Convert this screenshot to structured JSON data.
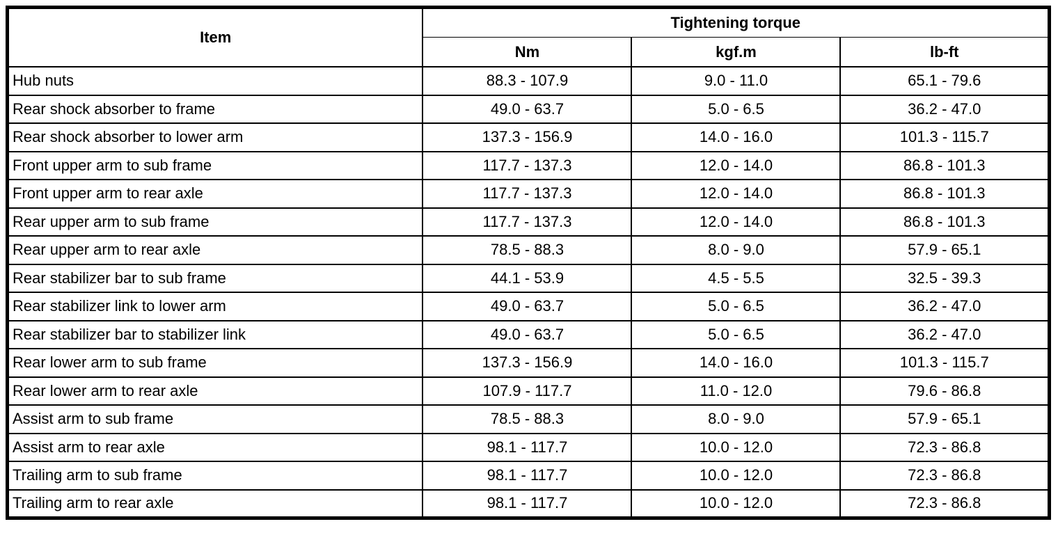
{
  "colors": {
    "border": "#000000",
    "background": "#ffffff",
    "text": "#000000"
  },
  "table": {
    "header": {
      "item_label": "Item",
      "group_label": "Tightening torque",
      "units": [
        "Nm",
        "kgf.m",
        "lb-ft"
      ]
    },
    "rows": [
      {
        "item": "Hub nuts",
        "nm": "88.3 - 107.9",
        "kgfm": "9.0 - 11.0",
        "lbft": "65.1 - 79.6"
      },
      {
        "item": "Rear shock absorber to frame",
        "nm": "49.0 - 63.7",
        "kgfm": "5.0 - 6.5",
        "lbft": "36.2 - 47.0"
      },
      {
        "item": "Rear shock absorber to lower arm",
        "nm": "137.3 - 156.9",
        "kgfm": "14.0 - 16.0",
        "lbft": "101.3 - 115.7"
      },
      {
        "item": "Front upper arm to sub frame",
        "nm": "117.7 - 137.3",
        "kgfm": "12.0 - 14.0",
        "lbft": "86.8 - 101.3"
      },
      {
        "item": "Front upper arm to rear axle",
        "nm": "117.7 - 137.3",
        "kgfm": "12.0 - 14.0",
        "lbft": "86.8 - 101.3"
      },
      {
        "item": "Rear upper arm to sub frame",
        "nm": "117.7 - 137.3",
        "kgfm": "12.0 - 14.0",
        "lbft": "86.8 - 101.3"
      },
      {
        "item": "Rear upper arm to rear axle",
        "nm": "78.5 - 88.3",
        "kgfm": "8.0 - 9.0",
        "lbft": "57.9 - 65.1"
      },
      {
        "item": "Rear stabilizer bar to sub frame",
        "nm": "44.1 - 53.9",
        "kgfm": "4.5 - 5.5",
        "lbft": "32.5 - 39.3"
      },
      {
        "item": "Rear stabilizer link to lower arm",
        "nm": "49.0 - 63.7",
        "kgfm": "5.0 - 6.5",
        "lbft": "36.2 - 47.0"
      },
      {
        "item": "Rear stabilizer bar to stabilizer link",
        "nm": "49.0 - 63.7",
        "kgfm": "5.0 - 6.5",
        "lbft": "36.2 - 47.0"
      },
      {
        "item": "Rear lower arm to sub frame",
        "nm": "137.3 - 156.9",
        "kgfm": "14.0 - 16.0",
        "lbft": "101.3 - 115.7"
      },
      {
        "item": "Rear lower arm to rear axle",
        "nm": "107.9 - 117.7",
        "kgfm": "11.0 - 12.0",
        "lbft": "79.6 - 86.8"
      },
      {
        "item": "Assist arm to sub frame",
        "nm": "78.5 - 88.3",
        "kgfm": "8.0 - 9.0",
        "lbft": "57.9 - 65.1"
      },
      {
        "item": "Assist arm to rear axle",
        "nm": "98.1 - 117.7",
        "kgfm": "10.0 - 12.0",
        "lbft": "72.3 - 86.8"
      },
      {
        "item": "Trailing arm to sub frame",
        "nm": "98.1 - 117.7",
        "kgfm": "10.0 - 12.0",
        "lbft": "72.3 - 86.8"
      },
      {
        "item": "Trailing arm to rear axle",
        "nm": "98.1 - 117.7",
        "kgfm": "10.0 - 12.0",
        "lbft": "72.3 - 86.8"
      }
    ]
  }
}
